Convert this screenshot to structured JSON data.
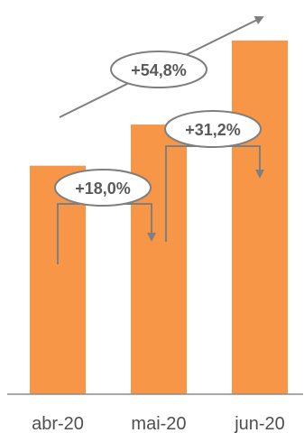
{
  "chart_data": {
    "type": "bar",
    "categories": [
      "abr-20",
      "mai-20",
      "jun-20"
    ],
    "values": [
      100,
      118.0,
      154.8
    ],
    "ylim": [
      0,
      165
    ],
    "grid": false,
    "legend": "none",
    "bar_color": "#F79646",
    "annotation_color": "#7F7F7F",
    "annotations": [
      {
        "text": "+18,0%",
        "from": "abr-20",
        "to": "mai-20"
      },
      {
        "text": "+31,2%",
        "from": "mai-20",
        "to": "jun-20"
      },
      {
        "text": "+54,8%",
        "from": "abr-20",
        "to": "jun-20"
      }
    ]
  }
}
